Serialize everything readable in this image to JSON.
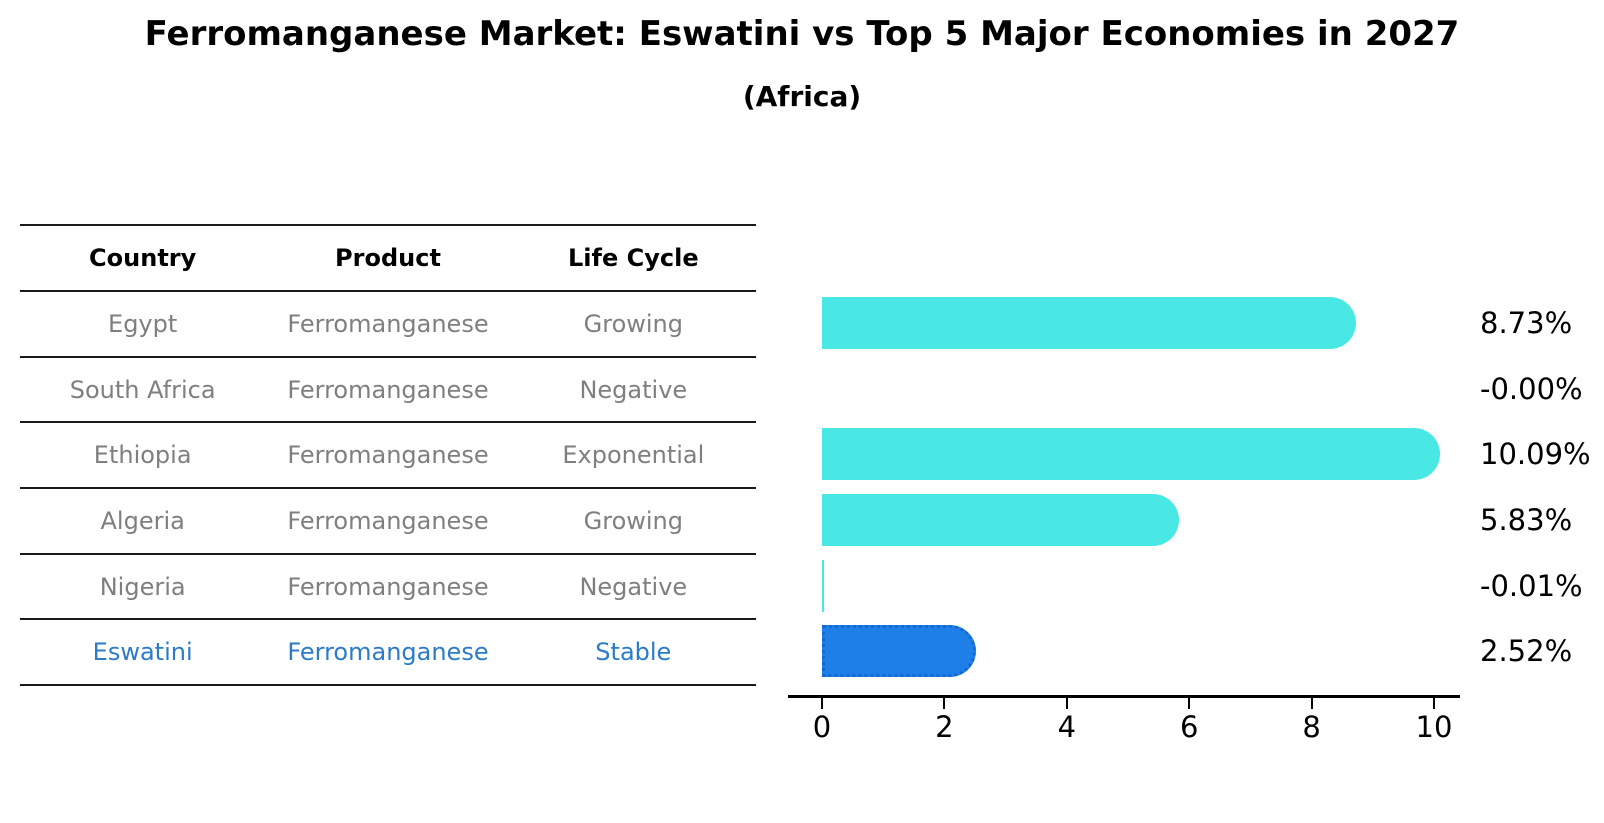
{
  "title": "Ferromanganese Market: Eswatini vs Top 5 Major Economies in 2027",
  "subtitle": "(Africa)",
  "table": {
    "headers": [
      "Country",
      "Product",
      "Life Cycle"
    ],
    "rows": [
      {
        "country": "Egypt",
        "product": "Ferromanganese",
        "life_cycle": "Growing",
        "highlight": false
      },
      {
        "country": "South Africa",
        "product": "Ferromanganese",
        "life_cycle": "Negative",
        "highlight": false
      },
      {
        "country": "Ethiopia",
        "product": "Ferromanganese",
        "life_cycle": "Exponential",
        "highlight": false
      },
      {
        "country": "Algeria",
        "product": "Ferromanganese",
        "life_cycle": "Growing",
        "highlight": false
      },
      {
        "country": "Nigeria",
        "product": "Ferromanganese",
        "life_cycle": "Negative",
        "highlight": false
      },
      {
        "country": "Eswatini",
        "product": "Ferromanganese",
        "life_cycle": "Stable",
        "highlight": true
      }
    ]
  },
  "chart_data": {
    "type": "bar",
    "orientation": "horizontal",
    "categories": [
      "Egypt",
      "South Africa",
      "Ethiopia",
      "Algeria",
      "Nigeria",
      "Eswatini"
    ],
    "values": [
      8.73,
      -0.0,
      10.09,
      5.83,
      -0.01,
      2.52
    ],
    "value_labels": [
      "8.73%",
      "-0.00%",
      "10.09%",
      "5.83%",
      "-0.01%",
      "2.52%"
    ],
    "x_ticks": [
      0,
      2,
      4,
      6,
      8,
      10
    ],
    "xlim": [
      0,
      10.9
    ],
    "grid": false,
    "legend": false,
    "highlight_index": 5
  },
  "colors": {
    "bar_default": "#4ae8e4",
    "bar_highlight": "#1f7fe8",
    "highlight_text": "#2b7bc8",
    "row_text": "#7f7f7f",
    "axis": "#000000"
  }
}
